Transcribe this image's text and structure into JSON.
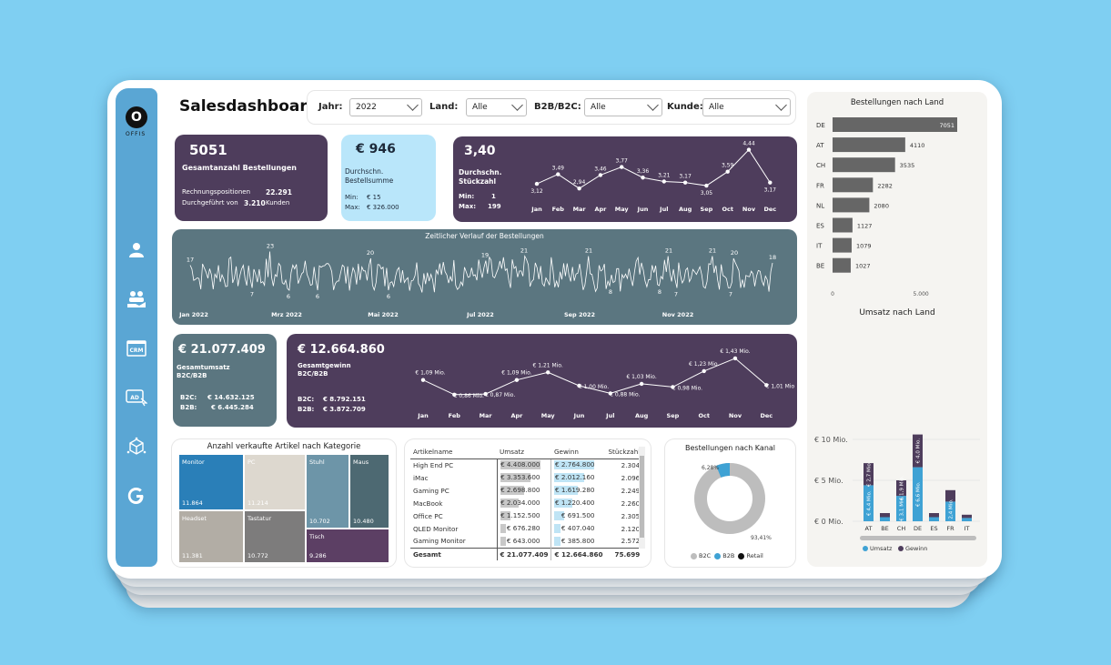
{
  "app": {
    "title": "Salesdashboard",
    "logo_text": "OFFIS",
    "logo_letter": "O"
  },
  "colors": {
    "background": "#7fcff2",
    "sidebar": "#5aa6d4",
    "purple": "#4e3d5c",
    "teal": "#5b7680",
    "light_blue": "#b9e6fa",
    "b2c_blue": "#3fa2d4",
    "gray_bar": "#666666"
  },
  "sidebar": {
    "items": [
      {
        "icon": "customer-icon"
      },
      {
        "icon": "hand-people-icon"
      },
      {
        "icon": "crm-icon",
        "text": "CRM"
      },
      {
        "icon": "ad-icon",
        "text": "AD"
      },
      {
        "icon": "box-network-icon"
      },
      {
        "icon": "google-icon",
        "text": "G"
      }
    ]
  },
  "filters": {
    "jahr": {
      "label": "Jahr:",
      "value": "2022"
    },
    "land": {
      "label": "Land:",
      "value": "Alle"
    },
    "b2b": {
      "label": "B2B/B2C:",
      "value": "Alle"
    },
    "kunde": {
      "label": "Kunde:",
      "value": "Alle"
    }
  },
  "kpi_orders": {
    "value": "5051",
    "label": "Gesamtanzahl Bestellungen",
    "row1_label": "Rechnungspositionen",
    "row1_value": "22.291",
    "row2_label": "Durchgeführt von",
    "row2_value": "3.210",
    "row2_suffix": "Kunden"
  },
  "kpi_avg_sum": {
    "value": "€ 946",
    "label1": "Durchschn.",
    "label2": "Bestellsumme",
    "min_label": "Min:",
    "min_value": "€ 15",
    "max_label": "Max:",
    "max_value": "€ 326.000"
  },
  "kpi_avg_qty": {
    "value": "3,40",
    "label1": "Durchschn.",
    "label2": "Stückzahl",
    "min_label": "Min:",
    "min_value": "1",
    "max_label": "Max:",
    "max_value": "199"
  },
  "qty_chart": {
    "months": [
      "Jan",
      "Feb",
      "Mar",
      "Apr",
      "May",
      "Jun",
      "Jul",
      "Aug",
      "Sep",
      "Oct",
      "Nov",
      "Dec"
    ],
    "values": [
      3.12,
      3.49,
      2.94,
      3.46,
      3.77,
      3.36,
      3.21,
      3.17,
      3.05,
      3.59,
      4.44,
      3.17
    ],
    "labels": [
      "3,12",
      "3,49",
      "2,94",
      "3,46",
      "3,77",
      "3,36",
      "3,21",
      "3,17",
      "3,05",
      "3,59",
      "4,44",
      "3,17"
    ]
  },
  "timeline": {
    "title": "Zeitlicher Verlauf der Bestellungen",
    "x_labels": [
      "Jan 2022",
      "Mrz 2022",
      "Mai 2022",
      "Jul 2022",
      "Sep 2022",
      "Nov 2022"
    ],
    "annotations": [
      "17",
      "23",
      "20",
      "19",
      "21",
      "21",
      "21",
      "21",
      "20",
      "18",
      "7",
      "6",
      "6",
      "6",
      "8",
      "8",
      "7",
      "7"
    ]
  },
  "kpi_revenue": {
    "value": "€ 21.077.409",
    "label1": "Gesamtumsatz",
    "label2": "B2C/B2B",
    "b2c_label": "B2C:",
    "b2c_value": "€ 14.632.125",
    "b2b_label": "B2B:",
    "b2b_value": "€ 6.445.284"
  },
  "kpi_profit": {
    "value": "€ 12.664.860",
    "label1": "Gesamtgewinn",
    "label2": "B2C/B2B",
    "b2c_label": "B2C:",
    "b2c_value": "€ 8.792.151",
    "b2b_label": "B2B:",
    "b2b_value": "€ 3.872.709"
  },
  "profit_chart": {
    "months": [
      "Jan",
      "Feb",
      "Mar",
      "Apr",
      "May",
      "Jun",
      "Jul",
      "Aug",
      "Sep",
      "Oct",
      "Nov",
      "Dec"
    ],
    "values": [
      1.09,
      0.86,
      0.87,
      1.09,
      1.21,
      1.0,
      0.88,
      1.03,
      0.98,
      1.23,
      1.43,
      1.01
    ],
    "labels": [
      "€ 1,09 Mio.",
      "€ 0,86 Mio.",
      "€ 0,87 Mio.",
      "€ 1,09 Mio.",
      "€ 1,21 Mio.",
      "€ 1,00 Mio.",
      "€ 0,88 Mio.",
      "€ 1,03 Mio.",
      "€ 0,98 Mio.",
      "€ 1,23 Mio.",
      "€ 1,43 Mio.",
      "€ 1,01 Mio."
    ]
  },
  "treemap": {
    "title": "Anzahl verkaufte Artikel nach Kategorie",
    "items": [
      {
        "name": "Monitor",
        "value": "11.864"
      },
      {
        "name": "PC",
        "value": "11.214"
      },
      {
        "name": "Stuhl",
        "value": "10.702"
      },
      {
        "name": "Maus",
        "value": "10.480"
      },
      {
        "name": "Headset",
        "value": "11.381"
      },
      {
        "name": "Tastatur",
        "value": "10.772"
      },
      {
        "name": "Tisch",
        "value": "9.286"
      }
    ]
  },
  "table": {
    "headers": [
      "Artikelname",
      "Umsatz",
      "Gewinn",
      "Stückzahl"
    ],
    "rows": [
      [
        "High End PC",
        "€ 4.408.000",
        "€ 2.764.800",
        "2.304"
      ],
      [
        "iMac",
        "€ 3.353.600",
        "€ 2.012.160",
        "2.096"
      ],
      [
        "Gaming PC",
        "€ 2.698.800",
        "€ 1.619.280",
        "2.249"
      ],
      [
        "MacBook",
        "€ 2.034.000",
        "€ 1.220.400",
        "2.260"
      ],
      [
        "Office PC",
        "€ 1.152.500",
        "€ 691.500",
        "2.305"
      ],
      [
        "QLED Monitor",
        "€ 676.280",
        "€ 407.040",
        "2.120"
      ],
      [
        "Gaming Monitor",
        "€ 643.000",
        "€ 385.800",
        "2.572"
      ]
    ],
    "umsatz_fill": [
      1.0,
      0.76,
      0.61,
      0.46,
      0.26,
      0.15,
      0.15
    ],
    "gewinn_fill": [
      1.0,
      0.73,
      0.59,
      0.44,
      0.25,
      0.15,
      0.14
    ],
    "total": [
      "Gesamt",
      "€ 21.077.409",
      "€ 12.664.860",
      "75.699"
    ]
  },
  "donut": {
    "title": "Bestellungen nach Kanal",
    "label_b2b": "6,28%",
    "label_b2c": "93,41%",
    "legend": [
      "B2C",
      "B2B",
      "Retail"
    ],
    "b2c_share": 93.41,
    "b2b_share": 6.28,
    "retail_share": 0.31
  },
  "country_orders": {
    "title": "Bestellungen nach Land",
    "categories": [
      "DE",
      "AT",
      "CH",
      "FR",
      "NL",
      "ES",
      "IT",
      "BE"
    ],
    "values": [
      7051,
      4110,
      3535,
      2282,
      2080,
      1127,
      1079,
      1027
    ],
    "labels": [
      "7051",
      "4110",
      "3535",
      "2282",
      "2080",
      "1127",
      "1079",
      "1027"
    ],
    "axis": [
      "0",
      "5.000"
    ]
  },
  "country_revenue": {
    "title": "Umsatz nach Land",
    "categories": [
      "AT",
      "BE",
      "CH",
      "DE",
      "ES",
      "FR",
      "IT"
    ],
    "umsatz": [
      4.4,
      0.5,
      3.1,
      6.6,
      0.5,
      2.4,
      0.4
    ],
    "gewinn": [
      2.7,
      0.5,
      1.9,
      4.0,
      0.5,
      1.4,
      0.4
    ],
    "umsatz_labels": [
      "€ 4,4 Mio.",
      "",
      "€ 3,1 Mio.",
      "€ 6,6 Mio.",
      "",
      "€ 2,4 Mio.",
      ""
    ],
    "gewinn_labels": [
      "€ 2,7 Mio.",
      "",
      "€ 1,9 Mio.",
      "€ 4,0 Mio.",
      "",
      "",
      ""
    ],
    "y_ticks": [
      "€ 10 Mio.",
      "€ 5 Mio.",
      "€ 0 Mio."
    ],
    "legend": [
      "Umsatz",
      "Gewinn"
    ]
  }
}
